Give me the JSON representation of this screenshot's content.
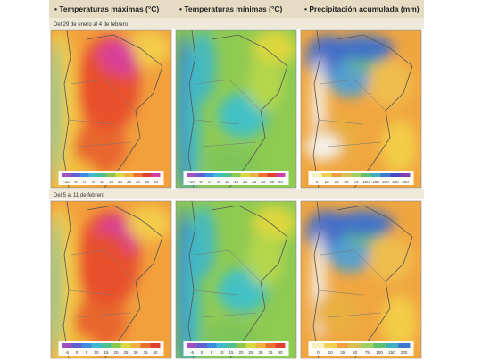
{
  "header": {
    "columns": [
      "• Temperaturas máximas (°C)",
      "• Temperaturas mínimas (°C)",
      "• Precipitación acumulada (mm)"
    ]
  },
  "rows": [
    {
      "period": "Del 29 de enero al 4 de febrero",
      "legends": [
        [
          "-10",
          "-5",
          "0",
          "5",
          "10",
          "15",
          "20",
          "25",
          "30",
          "35",
          "40"
        ],
        [
          "-10",
          "-5",
          "0",
          "5",
          "10",
          "15",
          "20",
          "25",
          "30",
          "35",
          "40"
        ],
        [
          "0",
          "10",
          "25",
          "50",
          "75",
          "100",
          "150",
          "200",
          "300",
          "400"
        ]
      ]
    },
    {
      "period": "Del 5 al 11 de febrero",
      "legends": [
        [
          "-5",
          "0",
          "5",
          "10",
          "15",
          "20",
          "25",
          "30",
          "35",
          "40"
        ],
        [
          "-5",
          "0",
          "5",
          "10",
          "15",
          "20",
          "25",
          "30",
          "35",
          "40"
        ],
        [
          "0",
          "10",
          "25",
          "50",
          "75",
          "100",
          "150",
          "200"
        ]
      ]
    }
  ]
}
